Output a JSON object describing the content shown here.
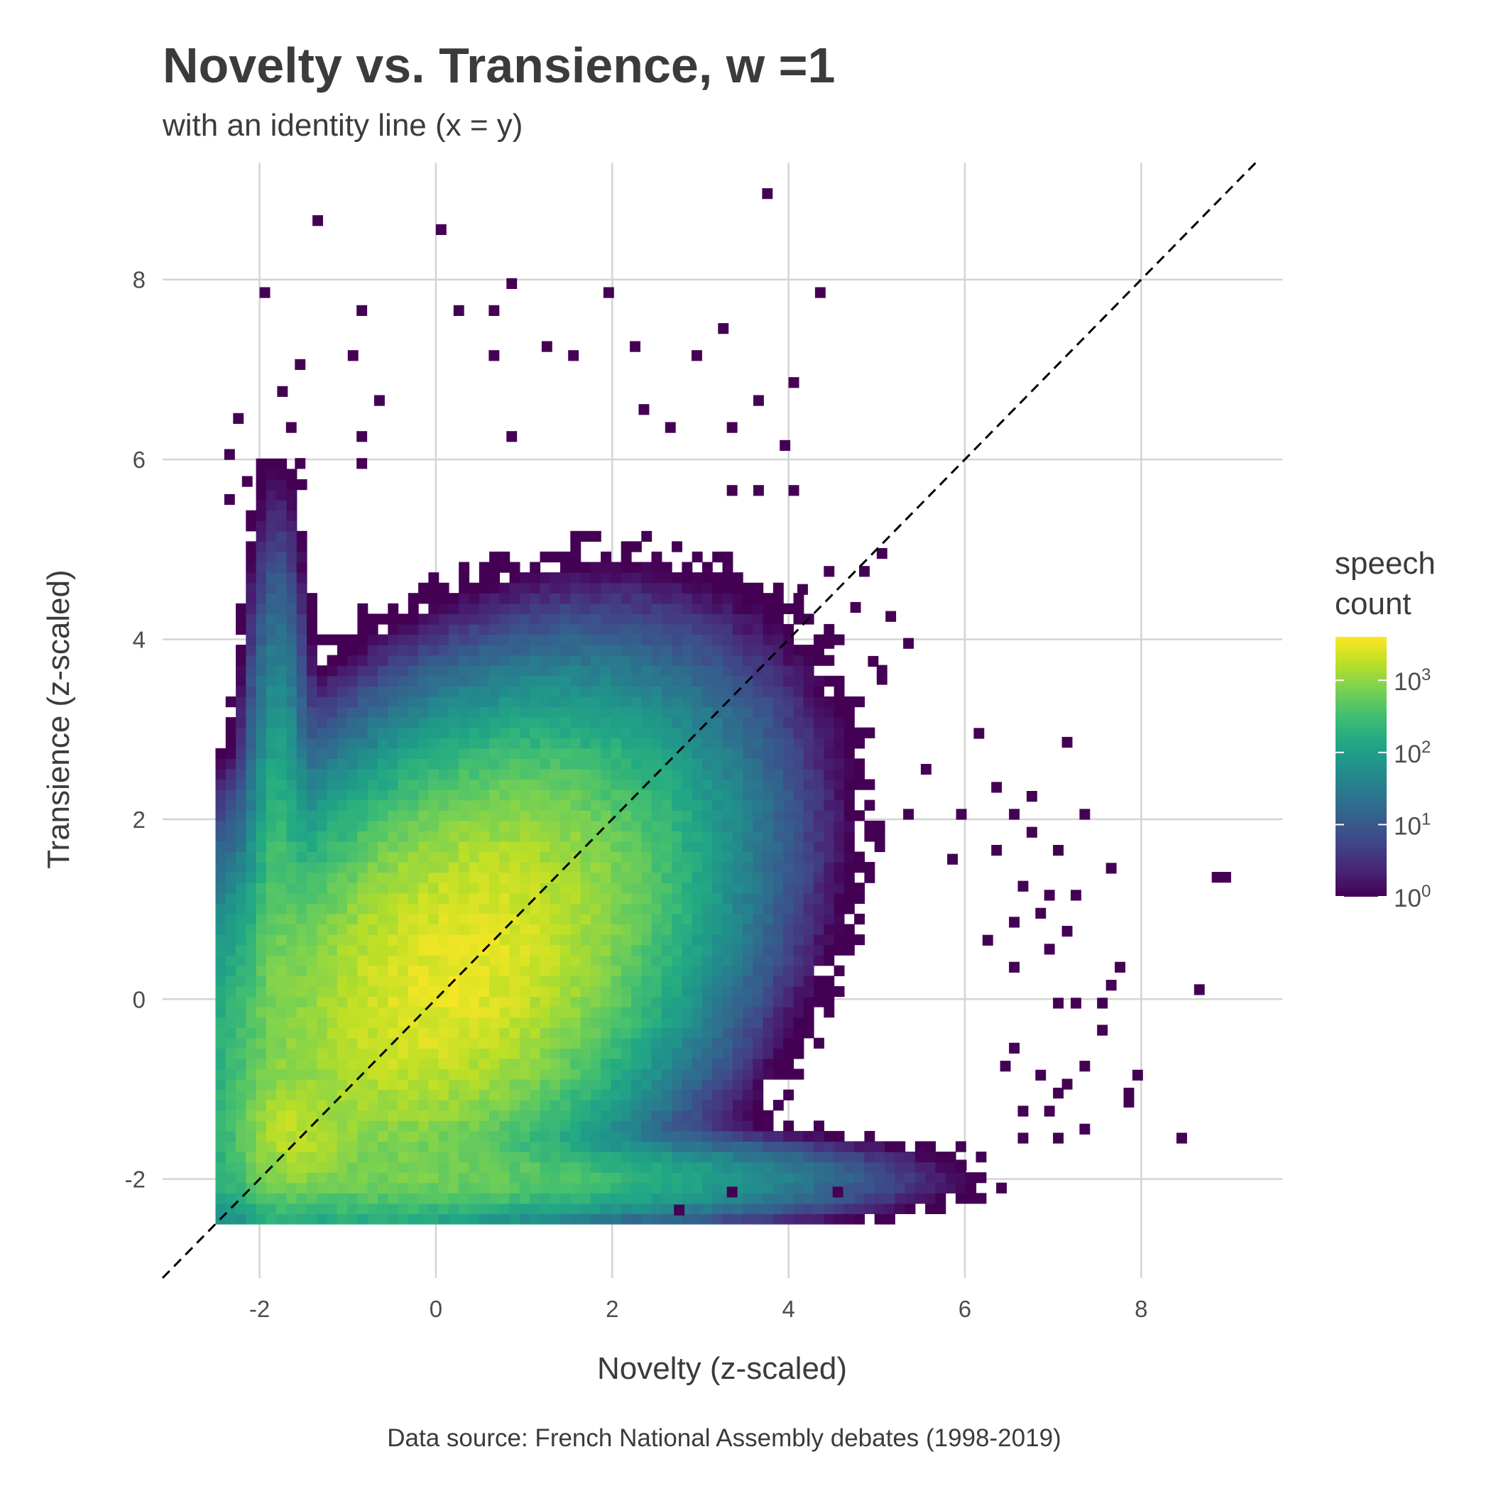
{
  "chart_data": {
    "type": "heatmap",
    "title": "Novelty vs. Transience, w =1",
    "subtitle": "with an identity line (x = y)",
    "caption": "Data source: French National Assembly debates (1998-2019)",
    "xlabel": "Novelty (z-scaled)",
    "ylabel": "Transience (z-scaled)",
    "xlim": [
      -3.1,
      9.6
    ],
    "ylim": [
      -3.1,
      9.3
    ],
    "x_ticks": [
      -2,
      0,
      2,
      4,
      6,
      8
    ],
    "y_ticks": [
      -2,
      0,
      2,
      4,
      6,
      8
    ],
    "x_tick_labels": [
      "-2",
      "0",
      "2",
      "4",
      "6",
      "8"
    ],
    "y_tick_labels": [
      "-2",
      "0",
      "2",
      "4",
      "6",
      "8"
    ],
    "bins": 100,
    "fill_scale": "log10",
    "colormap": "viridis",
    "legend": {
      "title_lines": [
        "speech",
        "count"
      ],
      "position": "right",
      "range": [
        1,
        4000
      ],
      "ticks": [
        1,
        10,
        100,
        1000
      ],
      "tick_base": "10",
      "tick_exponents": [
        "0",
        "1",
        "2",
        "3"
      ]
    },
    "density_peak": {
      "x": 0.2,
      "y": 0.3,
      "count_approx": 3000
    },
    "secondary_cluster": {
      "x": -1.6,
      "y": -1.5
    },
    "floor_clip": {
      "x": -2.5,
      "y": -2.5
    },
    "reference_line": {
      "label": "identity line (x = y)",
      "slope": 1,
      "intercept": 0,
      "style": "dashed"
    },
    "grid": true,
    "outliers": [
      [
        -1.4,
        8.6
      ],
      [
        0.0,
        8.5
      ],
      [
        3.7,
        8.9
      ],
      [
        -2.0,
        7.8
      ],
      [
        0.8,
        7.9
      ],
      [
        1.9,
        7.8
      ],
      [
        4.3,
        7.8
      ],
      [
        -0.9,
        7.6
      ],
      [
        0.2,
        7.6
      ],
      [
        0.6,
        7.6
      ],
      [
        3.2,
        7.4
      ],
      [
        1.2,
        7.2
      ],
      [
        2.2,
        7.2
      ],
      [
        -1.6,
        7.0
      ],
      [
        -1.0,
        7.1
      ],
      [
        0.6,
        7.1
      ],
      [
        1.5,
        7.1
      ],
      [
        2.9,
        7.1
      ],
      [
        -2.3,
        6.4
      ],
      [
        -1.8,
        6.7
      ],
      [
        -0.7,
        6.6
      ],
      [
        2.3,
        6.5
      ],
      [
        3.6,
        6.6
      ],
      [
        4.0,
        6.8
      ],
      [
        -2.4,
        6.0
      ],
      [
        -1.7,
        6.3
      ],
      [
        -0.9,
        6.2
      ],
      [
        2.6,
        6.3
      ],
      [
        3.3,
        6.3
      ],
      [
        0.8,
        6.2
      ],
      [
        3.9,
        6.1
      ],
      [
        -2.2,
        5.7
      ],
      [
        -1.6,
        5.9
      ],
      [
        -0.9,
        5.9
      ],
      [
        3.3,
        5.6
      ],
      [
        4.0,
        5.6
      ],
      [
        3.6,
        5.6
      ],
      [
        -2.4,
        5.5
      ],
      [
        4.4,
        4.7
      ],
      [
        4.8,
        4.7
      ],
      [
        5.0,
        4.9
      ],
      [
        4.1,
        4.5
      ],
      [
        4.7,
        4.3
      ],
      [
        5.1,
        4.2
      ],
      [
        4.4,
        3.9
      ],
      [
        5.0,
        3.6
      ],
      [
        5.3,
        3.9
      ],
      [
        4.9,
        3.7
      ],
      [
        5.0,
        3.5
      ],
      [
        6.1,
        2.9
      ],
      [
        7.1,
        2.8
      ],
      [
        5.5,
        2.5
      ],
      [
        6.3,
        2.3
      ],
      [
        6.7,
        2.2
      ],
      [
        5.3,
        2.0
      ],
      [
        5.9,
        2.0
      ],
      [
        6.5,
        2.0
      ],
      [
        7.3,
        2.0
      ],
      [
        6.7,
        1.8
      ],
      [
        6.3,
        1.6
      ],
      [
        7.0,
        1.6
      ],
      [
        5.8,
        1.5
      ],
      [
        6.6,
        1.2
      ],
      [
        7.6,
        1.4
      ],
      [
        8.8,
        1.3
      ],
      [
        8.9,
        1.3
      ],
      [
        7.2,
        1.1
      ],
      [
        6.9,
        1.1
      ],
      [
        6.8,
        0.9
      ],
      [
        6.5,
        0.8
      ],
      [
        7.1,
        0.7
      ],
      [
        6.2,
        0.6
      ],
      [
        6.9,
        0.5
      ],
      [
        7.7,
        0.3
      ],
      [
        6.5,
        0.3
      ],
      [
        7.0,
        -0.1
      ],
      [
        7.2,
        -0.1
      ],
      [
        7.5,
        -0.1
      ],
      [
        7.6,
        0.1
      ],
      [
        8.6,
        0.05
      ],
      [
        7.5,
        -0.4
      ],
      [
        6.5,
        -0.6
      ],
      [
        6.4,
        -0.8
      ],
      [
        7.3,
        -0.8
      ],
      [
        7.1,
        -1.0
      ],
      [
        7.9,
        -0.9
      ],
      [
        6.8,
        -0.9
      ],
      [
        7.0,
        -1.1
      ],
      [
        7.8,
        -1.1
      ],
      [
        7.8,
        -1.2
      ],
      [
        6.6,
        -1.3
      ],
      [
        6.9,
        -1.3
      ],
      [
        7.0,
        -1.6
      ],
      [
        8.4,
        -1.6
      ],
      [
        7.3,
        -1.5
      ],
      [
        6.6,
        -1.6
      ],
      [
        5.9,
        -1.9
      ],
      [
        4.5,
        -2.2
      ],
      [
        3.3,
        -2.2
      ],
      [
        2.7,
        -2.4
      ]
    ]
  }
}
